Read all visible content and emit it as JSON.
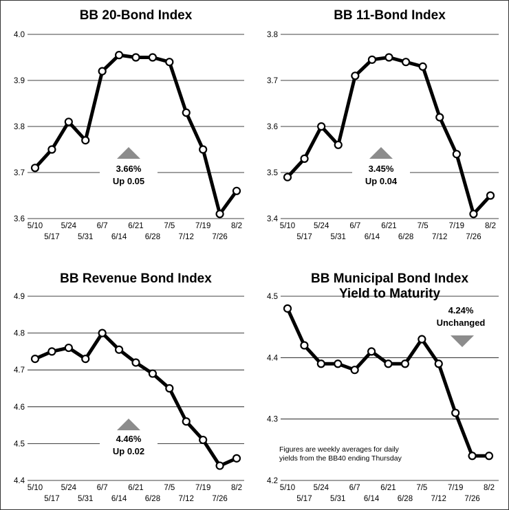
{
  "chart_data": [
    {
      "type": "line",
      "title": "BB 20-Bond Index",
      "x": [
        "5/10",
        "5/17",
        "5/24",
        "5/31",
        "6/7",
        "6/14",
        "6/21",
        "6/28",
        "7/5",
        "7/12",
        "7/19",
        "7/26",
        "8/2"
      ],
      "values": [
        3.71,
        3.75,
        3.81,
        3.77,
        3.92,
        3.955,
        3.95,
        3.95,
        3.94,
        3.83,
        3.75,
        3.61,
        3.66
      ],
      "ylim": [
        3.6,
        4.0
      ],
      "yticks": [
        "3.6",
        "3.7",
        "3.8",
        "3.9",
        "4.0"
      ],
      "grid": true,
      "callout": {
        "value": "3.66%",
        "change": "Up 0.05",
        "direction": "up"
      }
    },
    {
      "type": "line",
      "title": "BB 11-Bond Index",
      "x": [
        "5/10",
        "5/17",
        "5/24",
        "5/31",
        "6/7",
        "6/14",
        "6/21",
        "6/28",
        "7/5",
        "7/12",
        "7/19",
        "7/26",
        "8/2"
      ],
      "values": [
        3.49,
        3.53,
        3.6,
        3.56,
        3.71,
        3.745,
        3.75,
        3.74,
        3.73,
        3.62,
        3.54,
        3.41,
        3.45
      ],
      "ylim": [
        3.4,
        3.8
      ],
      "yticks": [
        "3.4",
        "3.5",
        "3.6",
        "3.7",
        "3.8"
      ],
      "grid": true,
      "callout": {
        "value": "3.45%",
        "change": "Up 0.04",
        "direction": "up"
      }
    },
    {
      "type": "line",
      "title": "BB Revenue Bond Index",
      "x": [
        "5/10",
        "5/17",
        "5/24",
        "5/31",
        "6/7",
        "6/14",
        "6/21",
        "6/28",
        "7/5",
        "7/12",
        "7/19",
        "7/26",
        "8/2"
      ],
      "values": [
        4.73,
        4.75,
        4.76,
        4.73,
        4.8,
        4.755,
        4.72,
        4.69,
        4.65,
        4.56,
        4.51,
        4.44,
        4.46
      ],
      "ylim": [
        4.4,
        4.9
      ],
      "yticks": [
        "4.4",
        "4.5",
        "4.6",
        "4.7",
        "4.8",
        "4.9"
      ],
      "grid": true,
      "callout": {
        "value": "4.46%",
        "change": "Up 0.02",
        "direction": "up"
      }
    },
    {
      "type": "line",
      "title": "BB Municipal Bond Index",
      "subtitle": "Yield to Maturity",
      "x": [
        "5/10",
        "5/17",
        "5/24",
        "5/31",
        "6/7",
        "6/14",
        "6/21",
        "6/28",
        "7/5",
        "7/12",
        "7/19",
        "7/26",
        "8/2"
      ],
      "values": [
        4.48,
        4.42,
        4.39,
        4.39,
        4.38,
        4.41,
        4.39,
        4.39,
        4.43,
        4.39,
        4.31,
        4.24,
        4.24
      ],
      "ylim": [
        4.2,
        4.5
      ],
      "yticks": [
        "4.2",
        "4.3",
        "4.4",
        "4.5"
      ],
      "grid": true,
      "callout": {
        "value": "4.24%",
        "change": "Unchanged",
        "direction": "down"
      },
      "note": [
        "Figures are weekly averages for daily",
        "yields from the BB40 ending Thursday"
      ]
    }
  ]
}
